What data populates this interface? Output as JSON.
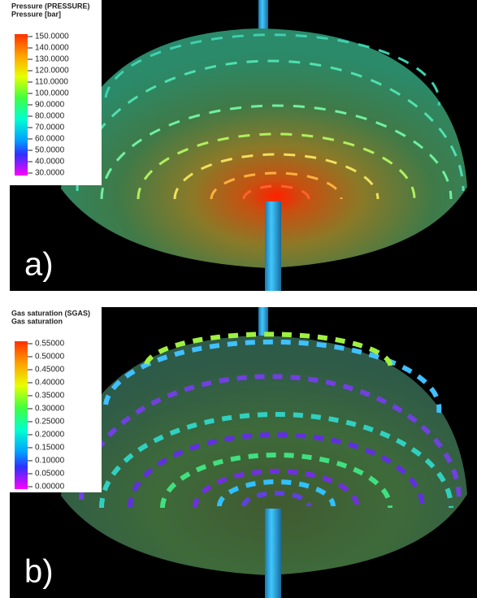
{
  "panels": [
    {
      "title": "Pressure (PRESSURE)",
      "subtitle": "Pressure [bar]",
      "ticks": [
        "150.0000",
        "140.0000",
        "130.0000",
        "120.0000",
        "110.0000",
        "100.0000",
        "90.0000",
        "80.0000",
        "70.0000",
        "60.0000",
        "50.0000",
        "40.0000",
        "30.0000"
      ],
      "label": "a)"
    },
    {
      "title": "Gas saturation (SGAS)",
      "subtitle": "Gas saturation",
      "ticks": [
        "0.55000",
        "0.50000",
        "0.45000",
        "0.40000",
        "0.35000",
        "0.30000",
        "0.25000",
        "0.20000",
        "0.15000",
        "0.10000",
        "0.05000",
        "0.00000"
      ],
      "label": "b)"
    }
  ]
}
